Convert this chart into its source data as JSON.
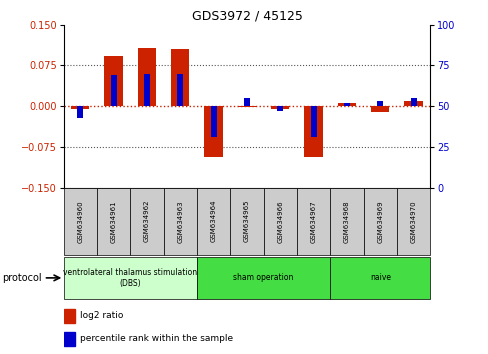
{
  "title": "GDS3972 / 45125",
  "samples": [
    "GSM634960",
    "GSM634961",
    "GSM634962",
    "GSM634963",
    "GSM634964",
    "GSM634965",
    "GSM634966",
    "GSM634967",
    "GSM634968",
    "GSM634969",
    "GSM634970"
  ],
  "log2_ratio": [
    -0.005,
    0.092,
    0.108,
    0.105,
    -0.093,
    -0.002,
    -0.005,
    -0.093,
    0.005,
    -0.01,
    0.01
  ],
  "percentile_rank": [
    43,
    69,
    70,
    70,
    31,
    55,
    47,
    31,
    52,
    53,
    55
  ],
  "groups": [
    {
      "label": "ventrolateral thalamus stimulation\n(DBS)",
      "start": 0,
      "end": 3,
      "color": "#ccffcc"
    },
    {
      "label": "sham operation",
      "start": 4,
      "end": 7,
      "color": "#44dd44"
    },
    {
      "label": "naive",
      "start": 8,
      "end": 10,
      "color": "#44dd44"
    }
  ],
  "ylim_left": [
    -0.15,
    0.15
  ],
  "ylim_right": [
    0,
    100
  ],
  "yticks_left": [
    -0.15,
    -0.075,
    0,
    0.075,
    0.15
  ],
  "yticks_right": [
    0,
    25,
    50,
    75,
    100
  ],
  "red_color": "#cc2200",
  "blue_color": "#0000cc",
  "hline_color": "#cc2200",
  "dotted_color": "#555555",
  "sample_box_color": "#cccccc",
  "protocol_label": "protocol",
  "legend_red": "log2 ratio",
  "legend_blue": "percentile rank within the sample"
}
